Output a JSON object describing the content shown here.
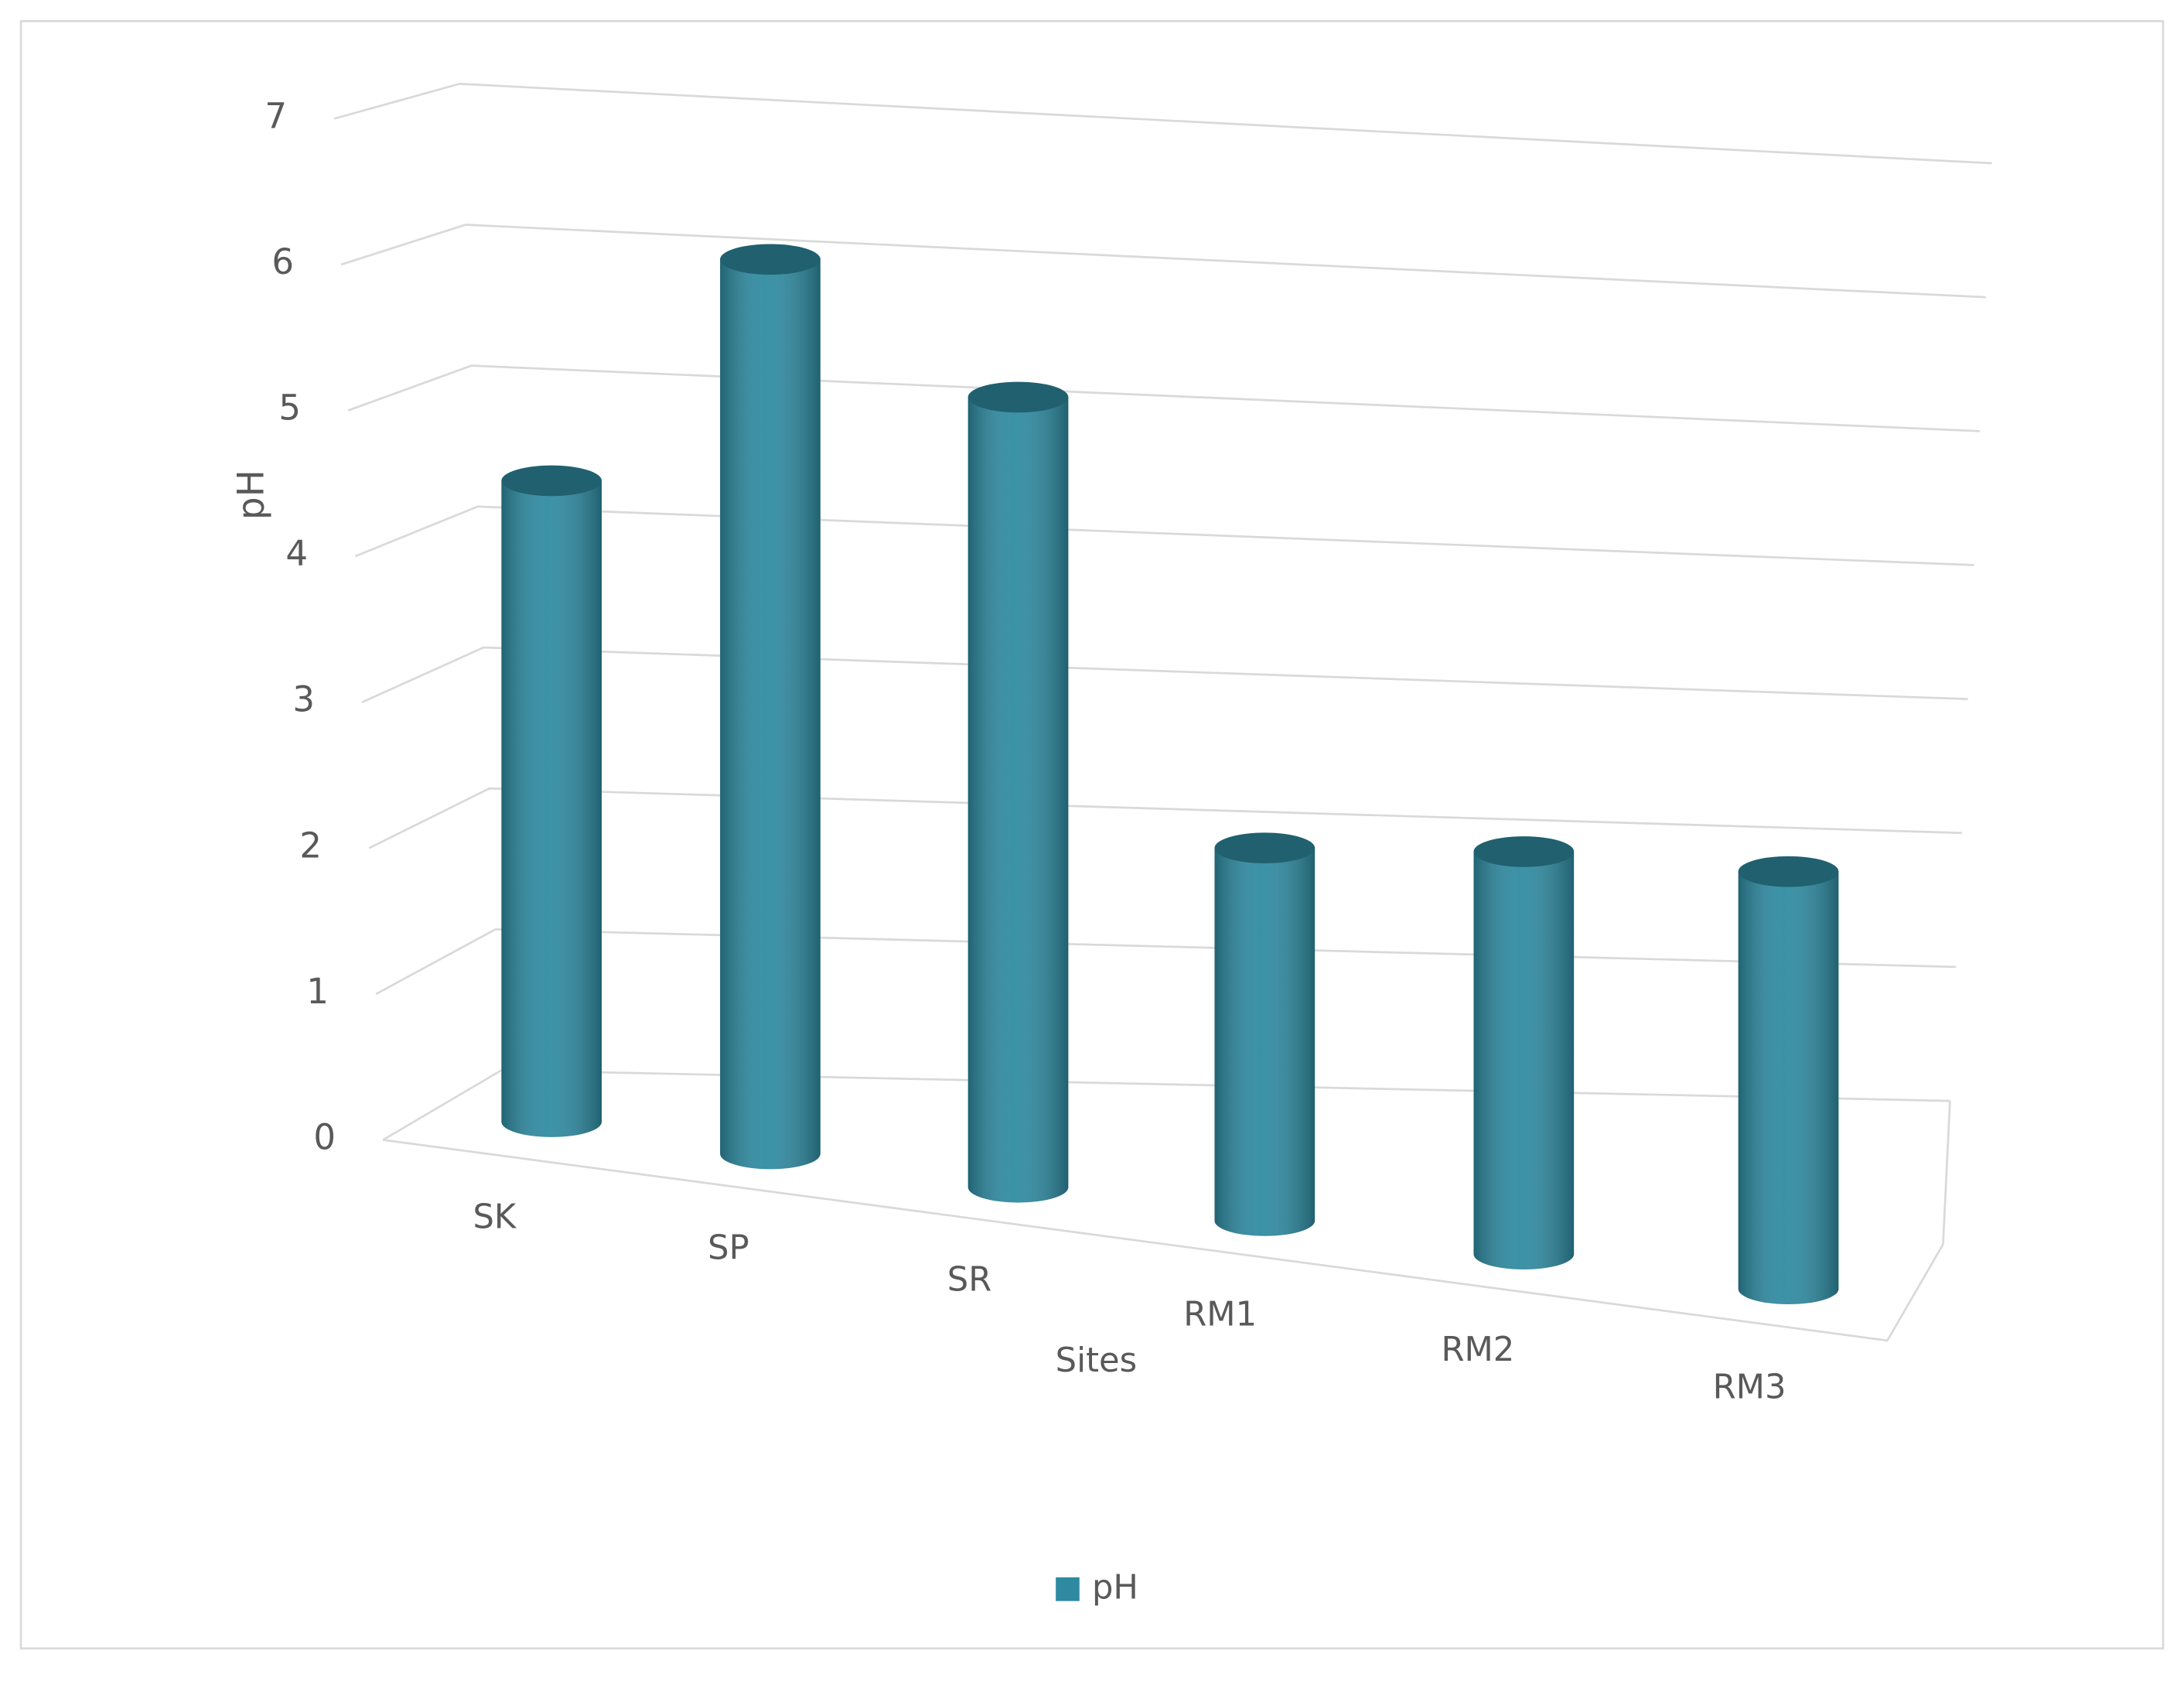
{
  "chart_data": {
    "type": "bar",
    "categories": [
      "SK",
      "SP",
      "SR",
      "RM1",
      "RM2",
      "RM3"
    ],
    "series": [
      {
        "name": "pH",
        "color": "#2e8aa0",
        "values": [
          4.3,
          6.0,
          5.3,
          2.5,
          2.7,
          2.8
        ]
      }
    ],
    "x_label": "Sites",
    "y_label": "pH",
    "ylim": [
      0,
      7
    ],
    "yticks": [
      0,
      1,
      2,
      3,
      4,
      5,
      6,
      7
    ],
    "grid": true,
    "legend": "bottom"
  }
}
